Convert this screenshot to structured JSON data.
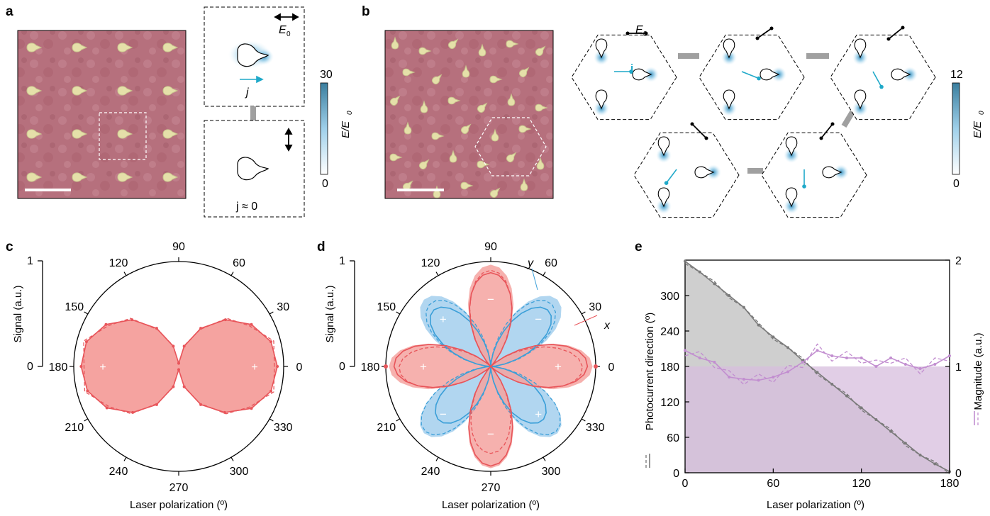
{
  "panels": {
    "a": "a",
    "b": "b",
    "c": "c",
    "d": "d",
    "e": "e"
  },
  "colors": {
    "red_fill": "#f5a3a0",
    "red_line": "#e8555a",
    "blue_fill": "#a9d2ee",
    "blue_line": "#3b9fd8",
    "grey_fill": "#cfcfcf",
    "grey_line": "#7a7a7a",
    "purple_fill": "#d7bedd",
    "purple_line": "#c28ed0",
    "sem_bg": "#b9727f",
    "field_dark": "#2a88b8",
    "arrow_cyan": "#1fa9c9"
  },
  "panel_a": {
    "e0_label": "E",
    "e0_sub": "0",
    "j_label": "j",
    "j_zero_label": "j ≈ 0",
    "colorbar_max": "30",
    "colorbar_min": "0",
    "colorbar_label": "E/E",
    "colorbar_label_sub": "0"
  },
  "panel_b": {
    "e0_label": "E",
    "e0_sub": "0",
    "j_label": "j",
    "colorbar_max": "12",
    "colorbar_min": "0",
    "colorbar_label": "E/E",
    "colorbar_label_sub": "0"
  },
  "panel_c": {
    "signal_label": "Signal (a.u.)",
    "signal_ticks": [
      "1",
      "0"
    ],
    "angle_ticks": [
      "0",
      "30",
      "60",
      "90",
      "120",
      "150",
      "180",
      "210",
      "240",
      "270",
      "300",
      "330"
    ],
    "xlabel": "Laser polarization (º)",
    "plus_marks": [
      "+",
      "+"
    ]
  },
  "panel_d": {
    "signal_label": "Signal (a.u.)",
    "signal_ticks": [
      "1",
      "0"
    ],
    "angle_ticks": [
      "0",
      "30",
      "60",
      "90",
      "120",
      "150",
      "180",
      "210",
      "240",
      "270",
      "300",
      "330"
    ],
    "xlabel": "Laser polarization (º)",
    "series_labels": [
      "x",
      "y"
    ],
    "sign_marks": [
      "+",
      "−",
      "+",
      "−",
      "+",
      "−",
      "+",
      "−"
    ]
  },
  "panel_e": {
    "ylabel_left": "Photocurrent direction (º)",
    "ylabel_right": "Magnitude (a.u.)",
    "xlabel": "Laser polarization (º)",
    "x_ticks": [
      "0",
      "60",
      "120",
      "180"
    ],
    "y_left_ticks": [
      "0",
      "60",
      "120",
      "180",
      "240",
      "300"
    ],
    "y_right_ticks": [
      "0",
      "1",
      "2"
    ]
  },
  "chart_data": [
    {
      "type": "polar",
      "panel": "c",
      "xlabel": "Laser polarization (º)",
      "ylabel": "Signal (a.u.)",
      "rlim": [
        0,
        1
      ],
      "series": [
        {
          "style": "solid",
          "angle_deg": [
            0,
            15,
            30,
            45,
            60,
            75,
            90,
            105,
            120,
            135,
            150,
            165,
            180,
            195,
            210,
            225,
            240,
            255,
            270,
            285,
            300,
            315,
            330,
            345
          ],
          "r": [
            0.94,
            0.91,
            0.8,
            0.63,
            0.42,
            0.2,
            0.03,
            0.2,
            0.42,
            0.63,
            0.8,
            0.91,
            0.93,
            0.9,
            0.79,
            0.62,
            0.42,
            0.2,
            0.03,
            0.2,
            0.42,
            0.62,
            0.8,
            0.91
          ]
        }
      ]
    },
    {
      "type": "polar",
      "panel": "d",
      "xlabel": "Laser polarization (º)",
      "ylabel": "Signal (a.u.)",
      "rlim": [
        0,
        1
      ],
      "series": [
        {
          "name": "x",
          "lobe_angles_deg": [
            0,
            90,
            180,
            270
          ],
          "lobe_peak": 0.97,
          "petals": 4
        },
        {
          "name": "y",
          "lobe_angles_deg": [
            45,
            135,
            225,
            315
          ],
          "lobe_peak": 0.9,
          "petals": 4
        }
      ]
    },
    {
      "type": "line",
      "panel": "e",
      "xlabel": "Laser polarization (º)",
      "ylabel": "Photocurrent direction (º)",
      "ylabel_right": "Magnitude (a.u.)",
      "xlim": [
        0,
        180
      ],
      "ylim": [
        0,
        360
      ],
      "ylim_right": [
        0,
        2
      ],
      "x": [
        0,
        10,
        20,
        30,
        40,
        50,
        60,
        70,
        80,
        90,
        100,
        110,
        120,
        130,
        140,
        150,
        160,
        170,
        180
      ],
      "series": [
        {
          "name": "Photocurrent direction",
          "axis": "left",
          "values": [
            358,
            340,
            320,
            300,
            280,
            250,
            230,
            212,
            190,
            170,
            150,
            130,
            110,
            90,
            70,
            50,
            30,
            15,
            2
          ]
        },
        {
          "name": "Magnitude",
          "axis": "right",
          "values": [
            1.15,
            1.08,
            1.04,
            0.9,
            0.88,
            0.87,
            0.9,
            0.95,
            1.04,
            1.15,
            1.1,
            1.08,
            1.08,
            1.0,
            1.08,
            1.02,
            0.98,
            1.02,
            1.1
          ]
        }
      ]
    }
  ]
}
